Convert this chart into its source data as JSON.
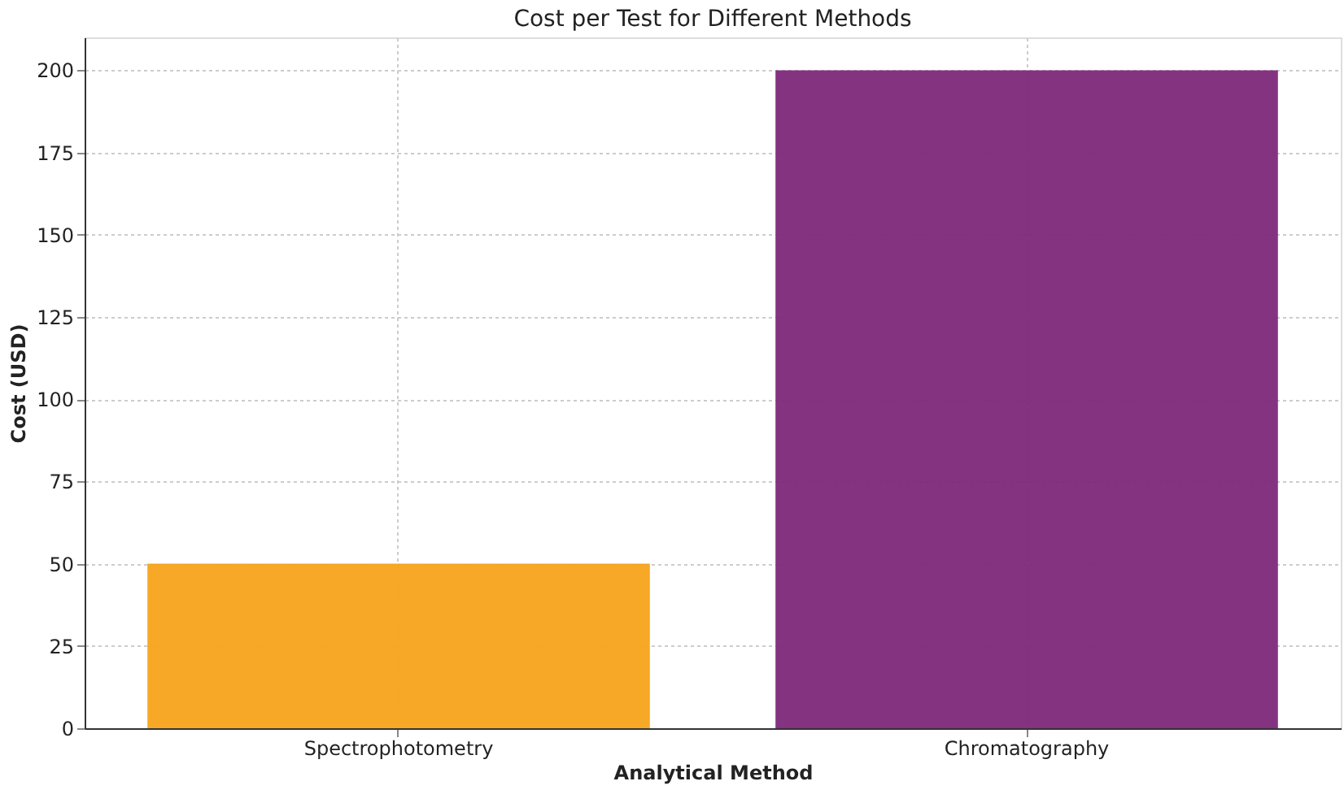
{
  "chart_data": {
    "type": "bar",
    "title": "Cost per Test for Different Methods",
    "xlabel": "Analytical Method",
    "ylabel": "Cost (USD)",
    "categories": [
      "Spectrophotometry",
      "Chromatography"
    ],
    "values": [
      50,
      200
    ],
    "colors": [
      "#f5a31a",
      "#7d287a"
    ],
    "ylim": [
      0,
      210
    ],
    "yticks": [
      0,
      25,
      50,
      75,
      100,
      125,
      150,
      175,
      200
    ],
    "grid": true
  }
}
